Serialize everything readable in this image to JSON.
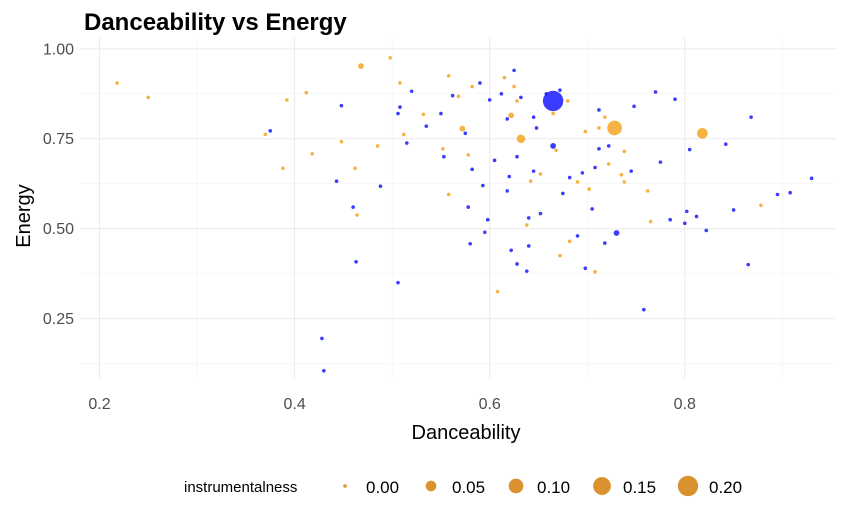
{
  "chart_data": {
    "type": "scatter",
    "title": "Danceability vs Energy",
    "xlabel": "Danceability",
    "ylabel": "Energy",
    "xlim": [
      0.18,
      0.955
    ],
    "ylim": [
      0.085,
      1.03
    ],
    "x_ticks": [
      0.2,
      0.4,
      0.6,
      0.8
    ],
    "x_tick_labels": [
      "0.2",
      "0.4",
      "0.6",
      "0.8"
    ],
    "y_ticks": [
      0.25,
      0.5,
      0.75,
      1.0
    ],
    "y_tick_labels": [
      "0.25",
      "0.50",
      "0.75",
      "1.00"
    ],
    "grid": true,
    "legend": {
      "title": "instrumentalness",
      "placement": "bottom",
      "values": [
        0.0,
        0.05,
        0.1,
        0.15,
        0.2
      ],
      "labels": [
        "0.00",
        "0.05",
        "0.10",
        "0.15",
        "0.20"
      ],
      "color": "#d9922e"
    },
    "colors": {
      "orange": "#f5a623",
      "blue": "#1a1aff"
    },
    "series": [
      {
        "color_key": "orange",
        "points": [
          [
            0.218,
            0.905,
            0
          ],
          [
            0.25,
            0.865,
            0
          ],
          [
            0.37,
            0.762,
            0
          ],
          [
            0.388,
            0.668,
            0
          ],
          [
            0.392,
            0.858,
            0
          ],
          [
            0.412,
            0.878,
            0
          ],
          [
            0.418,
            0.708,
            0
          ],
          [
            0.448,
            0.742,
            0
          ],
          [
            0.462,
            0.668,
            0
          ],
          [
            0.464,
            0.538,
            0
          ],
          [
            0.468,
            0.952,
            0.01
          ],
          [
            0.485,
            0.73,
            0
          ],
          [
            0.498,
            0.975,
            0
          ],
          [
            0.508,
            0.905,
            0
          ],
          [
            0.512,
            0.762,
            0
          ],
          [
            0.532,
            0.818,
            0
          ],
          [
            0.552,
            0.722,
            0
          ],
          [
            0.558,
            0.925,
            0
          ],
          [
            0.558,
            0.595,
            0
          ],
          [
            0.568,
            0.868,
            0
          ],
          [
            0.572,
            0.778,
            0.01
          ],
          [
            0.578,
            0.705,
            0
          ],
          [
            0.582,
            0.895,
            0
          ],
          [
            0.608,
            0.325,
            0
          ],
          [
            0.615,
            0.92,
            0
          ],
          [
            0.622,
            0.815,
            0.01
          ],
          [
            0.625,
            0.895,
            0
          ],
          [
            0.628,
            0.855,
            0
          ],
          [
            0.632,
            0.75,
            0.03
          ],
          [
            0.638,
            0.51,
            0
          ],
          [
            0.652,
            0.652,
            0
          ],
          [
            0.665,
            0.82,
            0
          ],
          [
            0.668,
            0.718,
            0
          ],
          [
            0.68,
            0.855,
            0
          ],
          [
            0.682,
            0.465,
            0
          ],
          [
            0.69,
            0.63,
            0
          ],
          [
            0.698,
            0.77,
            0
          ],
          [
            0.702,
            0.61,
            0
          ],
          [
            0.712,
            0.78,
            0
          ],
          [
            0.708,
            0.38,
            0
          ],
          [
            0.718,
            0.81,
            0
          ],
          [
            0.722,
            0.68,
            0
          ],
          [
            0.728,
            0.78,
            0.1
          ],
          [
            0.735,
            0.65,
            0
          ],
          [
            0.738,
            0.63,
            0
          ],
          [
            0.738,
            0.715,
            0
          ],
          [
            0.762,
            0.605,
            0
          ],
          [
            0.765,
            0.52,
            0
          ],
          [
            0.818,
            0.765,
            0.05
          ],
          [
            0.878,
            0.565,
            0
          ],
          [
            0.672,
            0.425,
            0
          ],
          [
            0.642,
            0.632,
            0
          ]
        ]
      },
      {
        "color_key": "blue",
        "points": [
          [
            0.375,
            0.772,
            0
          ],
          [
            0.428,
            0.195,
            0
          ],
          [
            0.43,
            0.105,
            0
          ],
          [
            0.443,
            0.632,
            0
          ],
          [
            0.448,
            0.842,
            0
          ],
          [
            0.46,
            0.56,
            0
          ],
          [
            0.463,
            0.408,
            0
          ],
          [
            0.488,
            0.618,
            0
          ],
          [
            0.506,
            0.35,
            0
          ],
          [
            0.506,
            0.82,
            0
          ],
          [
            0.508,
            0.838,
            0
          ],
          [
            0.515,
            0.738,
            0
          ],
          [
            0.52,
            0.882,
            0
          ],
          [
            0.535,
            0.785,
            0
          ],
          [
            0.55,
            0.82,
            0
          ],
          [
            0.553,
            0.7,
            0
          ],
          [
            0.562,
            0.87,
            0
          ],
          [
            0.575,
            0.765,
            0
          ],
          [
            0.578,
            0.56,
            0
          ],
          [
            0.58,
            0.458,
            0
          ],
          [
            0.59,
            0.905,
            0
          ],
          [
            0.593,
            0.62,
            0
          ],
          [
            0.595,
            0.49,
            0
          ],
          [
            0.598,
            0.525,
            0
          ],
          [
            0.6,
            0.858,
            0
          ],
          [
            0.605,
            0.69,
            0
          ],
          [
            0.618,
            0.805,
            0
          ],
          [
            0.618,
            0.605,
            0
          ],
          [
            0.62,
            0.645,
            0
          ],
          [
            0.622,
            0.44,
            0
          ],
          [
            0.625,
            0.94,
            0
          ],
          [
            0.628,
            0.402,
            0
          ],
          [
            0.628,
            0.7,
            0
          ],
          [
            0.632,
            0.865,
            0
          ],
          [
            0.638,
            0.382,
            0
          ],
          [
            0.64,
            0.53,
            0
          ],
          [
            0.64,
            0.452,
            0
          ],
          [
            0.645,
            0.81,
            0
          ],
          [
            0.645,
            0.66,
            0
          ],
          [
            0.648,
            0.78,
            0
          ],
          [
            0.652,
            0.542,
            0
          ],
          [
            0.658,
            0.875,
            0
          ],
          [
            0.665,
            0.855,
            0.2
          ],
          [
            0.665,
            0.73,
            0.01
          ],
          [
            0.672,
            0.885,
            0
          ],
          [
            0.675,
            0.598,
            0
          ],
          [
            0.682,
            0.642,
            0
          ],
          [
            0.69,
            0.48,
            0
          ],
          [
            0.695,
            0.655,
            0
          ],
          [
            0.698,
            0.39,
            0
          ],
          [
            0.705,
            0.555,
            0
          ],
          [
            0.708,
            0.67,
            0
          ],
          [
            0.712,
            0.722,
            0
          ],
          [
            0.712,
            0.83,
            0
          ],
          [
            0.718,
            0.46,
            0
          ],
          [
            0.722,
            0.73,
            0
          ],
          [
            0.73,
            0.488,
            0.01
          ],
          [
            0.745,
            0.66,
            0
          ],
          [
            0.748,
            0.84,
            0
          ],
          [
            0.758,
            0.275,
            0
          ],
          [
            0.77,
            0.88,
            0
          ],
          [
            0.775,
            0.685,
            0
          ],
          [
            0.785,
            0.525,
            0
          ],
          [
            0.79,
            0.86,
            0
          ],
          [
            0.8,
            0.515,
            0
          ],
          [
            0.802,
            0.548,
            0
          ],
          [
            0.805,
            0.72,
            0
          ],
          [
            0.812,
            0.534,
            0
          ],
          [
            0.822,
            0.495,
            0
          ],
          [
            0.842,
            0.735,
            0
          ],
          [
            0.85,
            0.552,
            0
          ],
          [
            0.865,
            0.4,
            0
          ],
          [
            0.868,
            0.81,
            0
          ],
          [
            0.895,
            0.595,
            0
          ],
          [
            0.908,
            0.6,
            0
          ],
          [
            0.93,
            0.64,
            0
          ],
          [
            0.612,
            0.875,
            0
          ],
          [
            0.582,
            0.665,
            0
          ]
        ]
      }
    ]
  }
}
